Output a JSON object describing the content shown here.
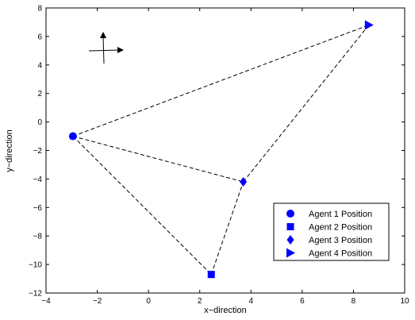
{
  "chart_data": {
    "type": "scatter",
    "title": "",
    "xlabel": "x−direction",
    "ylabel": "y−direction",
    "xlim": [
      -4,
      10
    ],
    "ylim": [
      -12,
      8
    ],
    "xticks": [
      -4,
      -2,
      0,
      2,
      4,
      6,
      8,
      10
    ],
    "yticks": [
      -12,
      -10,
      -8,
      -6,
      -4,
      -2,
      0,
      2,
      4,
      6,
      8
    ],
    "grid": false,
    "legend_position": "lower-right",
    "marker_color": "#0000ff",
    "series": [
      {
        "name": "Agent 1 Position",
        "marker": "circle",
        "x": -2.95,
        "y": -1.0
      },
      {
        "name": "Agent 2 Position",
        "marker": "square",
        "x": 2.45,
        "y": -10.7
      },
      {
        "name": "Agent 3 Position",
        "marker": "diamond",
        "x": 3.7,
        "y": -4.2
      },
      {
        "name": "Agent 4 Position",
        "marker": "triangle-right",
        "x": 8.6,
        "y": 6.8
      }
    ],
    "links": [
      [
        0,
        3
      ],
      [
        0,
        2
      ],
      [
        0,
        1
      ],
      [
        1,
        2
      ],
      [
        2,
        3
      ]
    ],
    "annotation_icon": "axes-arrows-icon"
  }
}
